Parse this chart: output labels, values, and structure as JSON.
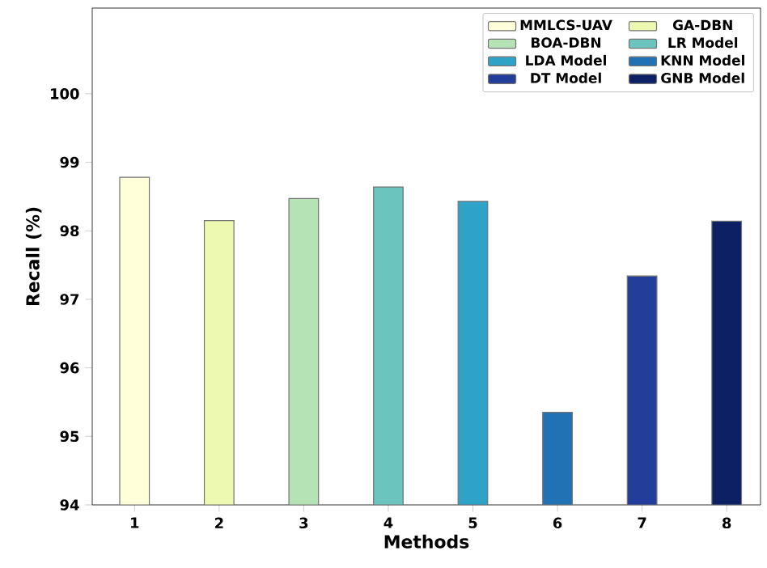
{
  "chart_data": {
    "type": "bar",
    "xlabel": "Methods",
    "ylabel": "Recall (%)",
    "categories": [
      "1",
      "2",
      "3",
      "4",
      "5",
      "6",
      "7",
      "8"
    ],
    "series": [
      {
        "name": "MMLCS-UAV",
        "color": "#ffffd9",
        "values": [
          98.78,
          null,
          null,
          null,
          null,
          null,
          null,
          null
        ]
      },
      {
        "name": "GA-DBN",
        "color": "#edf8b1",
        "values": [
          null,
          98.15,
          null,
          null,
          null,
          null,
          null,
          null
        ]
      },
      {
        "name": "BOA-DBN",
        "color": "#b6e3b6",
        "values": [
          null,
          null,
          98.47,
          null,
          null,
          null,
          null,
          null
        ]
      },
      {
        "name": "LR Model",
        "color": "#6bc4bd",
        "values": [
          null,
          null,
          null,
          98.64,
          null,
          null,
          null,
          null
        ]
      },
      {
        "name": "LDA Model",
        "color": "#2ea3c7",
        "values": [
          null,
          null,
          null,
          null,
          98.43,
          null,
          null,
          null
        ]
      },
      {
        "name": "KNN Model",
        "color": "#2171b5",
        "values": [
          null,
          null,
          null,
          null,
          null,
          95.35,
          null,
          null
        ]
      },
      {
        "name": "DT Model",
        "color": "#233d9a",
        "values": [
          null,
          null,
          null,
          null,
          null,
          null,
          97.34,
          null
        ]
      },
      {
        "name": "GNB Model",
        "color": "#0c2063",
        "values": [
          null,
          null,
          null,
          null,
          null,
          null,
          null,
          98.14
        ]
      }
    ],
    "ylim": [
      94,
      101.25
    ],
    "yticks": [
      94,
      95,
      96,
      97,
      98,
      99,
      100
    ],
    "grid": false,
    "legend": "top right"
  }
}
